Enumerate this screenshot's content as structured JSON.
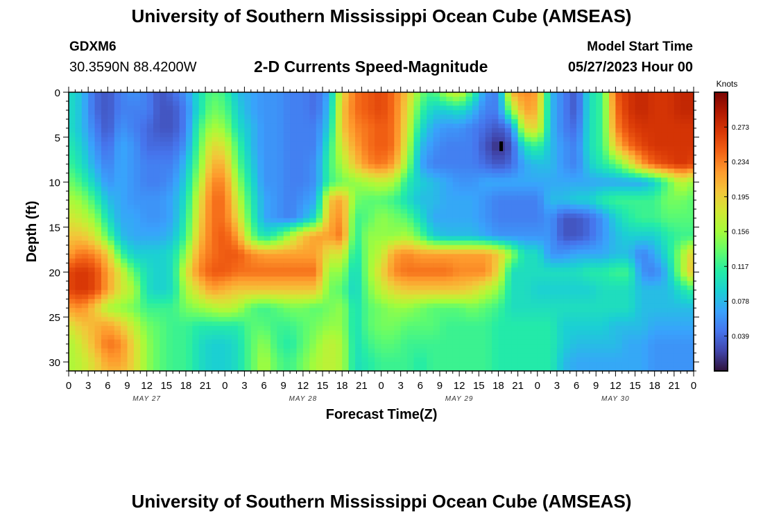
{
  "header": {
    "title": "University of Southern Mississippi Ocean Cube (AMSEAS)",
    "station": "GDXM6",
    "coords": "30.3590N  88.4200W",
    "subtitle": "2-D Currents Speed-Magnitude",
    "model_start_label": "Model Start Time",
    "model_start_value": "05/27/2023 Hour 00"
  },
  "footer": {
    "title": "University of Southern Mississippi Ocean Cube (AMSEAS)"
  },
  "chart_data": {
    "type": "heatmap",
    "title": "2-D Currents Speed-Magnitude",
    "xlabel": "Forecast Time(Z)",
    "ylabel": "Depth (ft)",
    "x_ticks": [
      "0",
      "3",
      "6",
      "9",
      "12",
      "15",
      "18",
      "21",
      "0",
      "3",
      "6",
      "9",
      "12",
      "15",
      "18",
      "21",
      "0",
      "3",
      "6",
      "9",
      "12",
      "15",
      "18",
      "21",
      "0",
      "3",
      "6",
      "9",
      "12",
      "15",
      "18",
      "21",
      "0"
    ],
    "x_range_hours": [
      0,
      96
    ],
    "date_labels": [
      {
        "label": "MAY 27",
        "hour": 12
      },
      {
        "label": "MAY 28",
        "hour": 36
      },
      {
        "label": "MAY 29",
        "hour": 60
      },
      {
        "label": "MAY 30",
        "hour": 84
      }
    ],
    "y_ticks": [
      "0",
      "5",
      "10",
      "15",
      "20",
      "25",
      "30"
    ],
    "y_range_ft": [
      0,
      31
    ],
    "colorbar": {
      "title": "Knots",
      "range": [
        0,
        0.312
      ],
      "tick_labels": [
        "0.273",
        "0.234",
        "0.195",
        "0.156",
        "0.117",
        "0.078",
        "0.039"
      ],
      "colors": [
        "#30123b",
        "#4145ab",
        "#4675ed",
        "#39a2fc",
        "#1bcfd4",
        "#24eca6",
        "#61fc6c",
        "#a4fc3b",
        "#d1e834",
        "#f3c63a",
        "#fe9b2d",
        "#f36315",
        "#d93806",
        "#b11901",
        "#7a0402"
      ]
    },
    "depth_rows_ft": [
      0,
      2,
      4,
      6,
      8,
      10,
      12,
      14,
      16,
      18,
      20,
      22,
      24,
      26,
      28,
      30,
      31
    ],
    "hour_columns": [
      0,
      2,
      4,
      6,
      8,
      10,
      12,
      14,
      16,
      18,
      20,
      22,
      24,
      26,
      28,
      30,
      32,
      34,
      36,
      38,
      40,
      42,
      44,
      46,
      48,
      50,
      52,
      54,
      56,
      58,
      60,
      62,
      64,
      66,
      68,
      70,
      72,
      74,
      76,
      78,
      80,
      82,
      84,
      86,
      88,
      90,
      92,
      94,
      96
    ],
    "speed_knots_grid": [
      [
        0.1,
        0.08,
        0.04,
        0.03,
        0.05,
        0.06,
        0.05,
        0.03,
        0.04,
        0.06,
        0.1,
        0.13,
        0.12,
        0.08,
        0.07,
        0.06,
        0.06,
        0.05,
        0.05,
        0.04,
        0.07,
        0.19,
        0.24,
        0.25,
        0.26,
        0.24,
        0.2,
        0.14,
        0.12,
        0.16,
        0.18,
        0.12,
        0.06,
        0.05,
        0.21,
        0.23,
        0.22,
        0.08,
        0.05,
        0.03,
        0.1,
        0.12,
        0.25,
        0.27,
        0.28,
        0.27,
        0.27,
        0.28,
        0.28
      ],
      [
        0.1,
        0.08,
        0.04,
        0.03,
        0.05,
        0.05,
        0.05,
        0.03,
        0.03,
        0.05,
        0.1,
        0.14,
        0.13,
        0.09,
        0.07,
        0.06,
        0.06,
        0.05,
        0.05,
        0.04,
        0.08,
        0.2,
        0.24,
        0.25,
        0.26,
        0.24,
        0.19,
        0.12,
        0.09,
        0.09,
        0.1,
        0.08,
        0.05,
        0.05,
        0.15,
        0.22,
        0.21,
        0.08,
        0.05,
        0.03,
        0.1,
        0.12,
        0.24,
        0.27,
        0.28,
        0.27,
        0.27,
        0.28,
        0.28
      ],
      [
        0.1,
        0.08,
        0.05,
        0.03,
        0.06,
        0.05,
        0.04,
        0.03,
        0.03,
        0.05,
        0.12,
        0.16,
        0.15,
        0.1,
        0.08,
        0.06,
        0.06,
        0.05,
        0.05,
        0.05,
        0.09,
        0.2,
        0.23,
        0.24,
        0.25,
        0.24,
        0.18,
        0.1,
        0.07,
        0.06,
        0.06,
        0.05,
        0.04,
        0.03,
        0.05,
        0.18,
        0.19,
        0.08,
        0.05,
        0.04,
        0.1,
        0.12,
        0.23,
        0.26,
        0.27,
        0.27,
        0.27,
        0.27,
        0.27
      ],
      [
        0.11,
        0.09,
        0.06,
        0.04,
        0.07,
        0.06,
        0.04,
        0.04,
        0.04,
        0.06,
        0.13,
        0.19,
        0.18,
        0.12,
        0.08,
        0.06,
        0.06,
        0.05,
        0.05,
        0.05,
        0.11,
        0.18,
        0.22,
        0.24,
        0.25,
        0.24,
        0.17,
        0.08,
        0.06,
        0.05,
        0.05,
        0.05,
        0.03,
        0.01,
        0.03,
        0.1,
        0.12,
        0.08,
        0.06,
        0.05,
        0.1,
        0.12,
        0.2,
        0.24,
        0.26,
        0.27,
        0.27,
        0.27,
        0.27
      ],
      [
        0.12,
        0.1,
        0.07,
        0.05,
        0.07,
        0.06,
        0.05,
        0.05,
        0.05,
        0.08,
        0.14,
        0.21,
        0.21,
        0.13,
        0.09,
        0.06,
        0.06,
        0.05,
        0.05,
        0.06,
        0.12,
        0.16,
        0.2,
        0.23,
        0.24,
        0.22,
        0.15,
        0.07,
        0.05,
        0.05,
        0.05,
        0.05,
        0.04,
        0.03,
        0.04,
        0.07,
        0.08,
        0.08,
        0.06,
        0.05,
        0.09,
        0.11,
        0.13,
        0.17,
        0.22,
        0.25,
        0.26,
        0.27,
        0.26
      ],
      [
        0.14,
        0.12,
        0.09,
        0.06,
        0.07,
        0.06,
        0.05,
        0.05,
        0.06,
        0.09,
        0.16,
        0.23,
        0.23,
        0.15,
        0.1,
        0.06,
        0.06,
        0.05,
        0.05,
        0.06,
        0.12,
        0.14,
        0.15,
        0.16,
        0.17,
        0.16,
        0.11,
        0.09,
        0.08,
        0.07,
        0.06,
        0.06,
        0.07,
        0.07,
        0.07,
        0.07,
        0.07,
        0.07,
        0.07,
        0.07,
        0.07,
        0.07,
        0.07,
        0.07,
        0.07,
        0.09,
        0.13,
        0.17,
        0.15
      ],
      [
        0.16,
        0.15,
        0.12,
        0.08,
        0.07,
        0.06,
        0.06,
        0.06,
        0.07,
        0.1,
        0.18,
        0.24,
        0.24,
        0.17,
        0.11,
        0.07,
        0.06,
        0.05,
        0.06,
        0.07,
        0.2,
        0.22,
        0.14,
        0.13,
        0.13,
        0.12,
        0.1,
        0.08,
        0.08,
        0.07,
        0.07,
        0.07,
        0.06,
        0.05,
        0.05,
        0.05,
        0.05,
        0.08,
        0.08,
        0.09,
        0.09,
        0.11,
        0.12,
        0.12,
        0.12,
        0.12,
        0.14,
        0.14,
        0.13
      ],
      [
        0.18,
        0.17,
        0.15,
        0.1,
        0.07,
        0.07,
        0.06,
        0.06,
        0.07,
        0.11,
        0.19,
        0.24,
        0.24,
        0.19,
        0.12,
        0.07,
        0.06,
        0.05,
        0.07,
        0.1,
        0.21,
        0.23,
        0.12,
        0.13,
        0.15,
        0.14,
        0.13,
        0.1,
        0.07,
        0.07,
        0.07,
        0.07,
        0.06,
        0.05,
        0.05,
        0.05,
        0.05,
        0.06,
        0.03,
        0.03,
        0.04,
        0.06,
        0.09,
        0.11,
        0.12,
        0.12,
        0.13,
        0.13,
        0.13
      ],
      [
        0.2,
        0.2,
        0.18,
        0.13,
        0.08,
        0.07,
        0.07,
        0.07,
        0.08,
        0.12,
        0.2,
        0.24,
        0.25,
        0.22,
        0.14,
        0.1,
        0.12,
        0.16,
        0.2,
        0.22,
        0.22,
        0.24,
        0.11,
        0.15,
        0.15,
        0.15,
        0.16,
        0.13,
        0.09,
        0.08,
        0.08,
        0.08,
        0.07,
        0.06,
        0.06,
        0.06,
        0.06,
        0.06,
        0.03,
        0.03,
        0.04,
        0.06,
        0.08,
        0.09,
        0.09,
        0.09,
        0.11,
        0.12,
        0.12
      ],
      [
        0.22,
        0.24,
        0.23,
        0.2,
        0.12,
        0.09,
        0.09,
        0.09,
        0.1,
        0.15,
        0.22,
        0.24,
        0.25,
        0.25,
        0.23,
        0.22,
        0.22,
        0.22,
        0.22,
        0.22,
        0.18,
        0.18,
        0.1,
        0.15,
        0.17,
        0.22,
        0.23,
        0.22,
        0.22,
        0.22,
        0.22,
        0.22,
        0.22,
        0.2,
        0.15,
        0.1,
        0.1,
        0.06,
        0.06,
        0.07,
        0.07,
        0.07,
        0.08,
        0.08,
        0.05,
        0.07,
        0.1,
        0.15,
        0.2
      ],
      [
        0.26,
        0.27,
        0.26,
        0.22,
        0.18,
        0.13,
        0.1,
        0.09,
        0.1,
        0.18,
        0.23,
        0.25,
        0.25,
        0.24,
        0.24,
        0.24,
        0.24,
        0.24,
        0.24,
        0.24,
        0.15,
        0.15,
        0.09,
        0.15,
        0.19,
        0.23,
        0.24,
        0.24,
        0.24,
        0.24,
        0.23,
        0.23,
        0.23,
        0.19,
        0.1,
        0.1,
        0.1,
        0.1,
        0.1,
        0.1,
        0.11,
        0.11,
        0.12,
        0.12,
        0.06,
        0.05,
        0.08,
        0.15,
        0.21
      ],
      [
        0.26,
        0.27,
        0.26,
        0.22,
        0.18,
        0.16,
        0.1,
        0.09,
        0.1,
        0.16,
        0.19,
        0.22,
        0.21,
        0.2,
        0.2,
        0.2,
        0.2,
        0.2,
        0.2,
        0.2,
        0.14,
        0.13,
        0.09,
        0.14,
        0.17,
        0.19,
        0.2,
        0.2,
        0.2,
        0.2,
        0.2,
        0.19,
        0.17,
        0.15,
        0.1,
        0.1,
        0.09,
        0.09,
        0.09,
        0.09,
        0.09,
        0.1,
        0.1,
        0.1,
        0.08,
        0.08,
        0.08,
        0.1,
        0.12
      ],
      [
        0.22,
        0.23,
        0.2,
        0.16,
        0.15,
        0.14,
        0.12,
        0.12,
        0.12,
        0.14,
        0.15,
        0.16,
        0.17,
        0.16,
        0.13,
        0.12,
        0.13,
        0.14,
        0.14,
        0.13,
        0.14,
        0.15,
        0.1,
        0.13,
        0.14,
        0.15,
        0.15,
        0.14,
        0.13,
        0.13,
        0.13,
        0.14,
        0.13,
        0.12,
        0.1,
        0.1,
        0.1,
        0.1,
        0.1,
        0.1,
        0.1,
        0.1,
        0.1,
        0.1,
        0.08,
        0.08,
        0.08,
        0.08,
        0.08
      ],
      [
        0.18,
        0.2,
        0.21,
        0.22,
        0.2,
        0.17,
        0.14,
        0.13,
        0.12,
        0.12,
        0.11,
        0.11,
        0.11,
        0.11,
        0.13,
        0.13,
        0.12,
        0.12,
        0.13,
        0.14,
        0.15,
        0.15,
        0.1,
        0.13,
        0.14,
        0.14,
        0.13,
        0.13,
        0.13,
        0.12,
        0.12,
        0.12,
        0.12,
        0.11,
        0.11,
        0.11,
        0.11,
        0.11,
        0.09,
        0.09,
        0.09,
        0.09,
        0.08,
        0.08,
        0.08,
        0.07,
        0.07,
        0.07,
        0.07
      ],
      [
        0.16,
        0.18,
        0.21,
        0.24,
        0.23,
        0.19,
        0.15,
        0.13,
        0.12,
        0.12,
        0.1,
        0.09,
        0.09,
        0.1,
        0.13,
        0.15,
        0.12,
        0.11,
        0.13,
        0.15,
        0.17,
        0.16,
        0.1,
        0.12,
        0.13,
        0.13,
        0.12,
        0.12,
        0.12,
        0.12,
        0.12,
        0.12,
        0.12,
        0.11,
        0.11,
        0.11,
        0.11,
        0.11,
        0.09,
        0.08,
        0.08,
        0.08,
        0.08,
        0.07,
        0.07,
        0.06,
        0.06,
        0.06,
        0.06
      ],
      [
        0.16,
        0.17,
        0.19,
        0.22,
        0.22,
        0.19,
        0.15,
        0.13,
        0.12,
        0.12,
        0.1,
        0.09,
        0.09,
        0.1,
        0.13,
        0.16,
        0.13,
        0.12,
        0.14,
        0.16,
        0.17,
        0.16,
        0.1,
        0.11,
        0.12,
        0.12,
        0.12,
        0.11,
        0.12,
        0.12,
        0.12,
        0.12,
        0.12,
        0.11,
        0.11,
        0.11,
        0.11,
        0.11,
        0.08,
        0.07,
        0.07,
        0.07,
        0.07,
        0.07,
        0.07,
        0.06,
        0.06,
        0.06,
        0.06
      ],
      [
        0.16,
        0.17,
        0.19,
        0.21,
        0.21,
        0.19,
        0.15,
        0.13,
        0.12,
        0.12,
        0.1,
        0.09,
        0.09,
        0.1,
        0.13,
        0.16,
        0.13,
        0.12,
        0.14,
        0.16,
        0.17,
        0.16,
        0.1,
        0.11,
        0.12,
        0.12,
        0.12,
        0.11,
        0.12,
        0.12,
        0.12,
        0.12,
        0.12,
        0.11,
        0.11,
        0.11,
        0.11,
        0.11,
        0.08,
        0.07,
        0.07,
        0.07,
        0.07,
        0.07,
        0.07,
        0.06,
        0.06,
        0.06,
        0.06
      ]
    ]
  }
}
